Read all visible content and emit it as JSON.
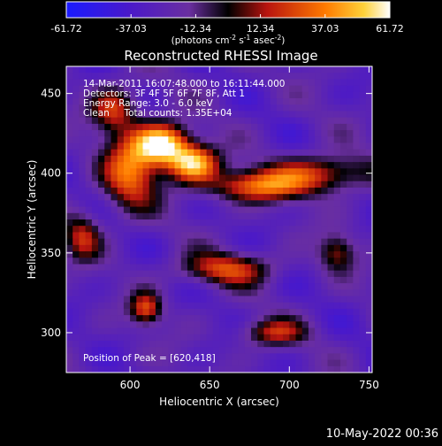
{
  "colorbar": {
    "tick_labels": [
      "-61.72",
      "-37.03",
      "-12.34",
      "12.34",
      "37.03",
      "61.72"
    ],
    "tick_values": [
      -61.72,
      -37.03,
      -12.34,
      12.34,
      37.03,
      61.72
    ],
    "range": [
      -61.72,
      61.72
    ],
    "units_prefix": "(photons cm",
    "units_exp1": "-2",
    "units_mid": " s",
    "units_exp2": "-1",
    "units_mid2": " asec",
    "units_exp3": "-2",
    "units_suffix": ")",
    "colormap": "rainbow-blue-to-white"
  },
  "chart_data": {
    "type": "heatmap",
    "title": "Reconstructed RHESSI Image",
    "xlabel": "Heliocentric X (arcsec)",
    "ylabel": "Heliocentric Y (arcsec)",
    "xlim": [
      560,
      752
    ],
    "ylim": [
      275,
      467
    ],
    "x_ticks": [
      600,
      650,
      700,
      750
    ],
    "y_ticks": [
      300,
      350,
      400,
      450
    ],
    "x_tick_labels": [
      "600",
      "650",
      "700",
      "750"
    ],
    "y_tick_labels": [
      "300",
      "350",
      "400",
      "450"
    ],
    "peak": [
      620,
      418
    ],
    "sources": [
      {
        "x": 620,
        "y": 418,
        "amp": 61.7,
        "sx": 12,
        "sy": 9
      },
      {
        "x": 640,
        "y": 406,
        "amp": 48,
        "sx": 11,
        "sy": 8
      },
      {
        "x": 600,
        "y": 400,
        "amp": 32,
        "sx": 12,
        "sy": 16
      },
      {
        "x": 680,
        "y": 392,
        "amp": 30,
        "sx": 22,
        "sy": 7
      },
      {
        "x": 720,
        "y": 400,
        "amp": 20,
        "sx": 22,
        "sy": 8
      },
      {
        "x": 590,
        "y": 440,
        "amp": 22,
        "sx": 10,
        "sy": 10
      },
      {
        "x": 660,
        "y": 340,
        "amp": 22,
        "sx": 20,
        "sy": 7
      },
      {
        "x": 610,
        "y": 315,
        "amp": 24,
        "sx": 7,
        "sy": 7
      },
      {
        "x": 570,
        "y": 360,
        "amp": 15,
        "sx": 8,
        "sy": 10
      },
      {
        "x": 690,
        "y": 300,
        "amp": 14,
        "sx": 14,
        "sy": 6
      },
      {
        "x": 730,
        "y": 350,
        "amp": 10,
        "sx": 8,
        "sy": 8
      }
    ]
  },
  "overlay": {
    "time_range": "14-Mar-2011 16:07:48.000 to 16:11:44.000",
    "detectors": "Detectors: 3F 4F 5F 6F 7F 8F, Att 1",
    "energy": "Energy Range: 3.0 - 6.0 keV",
    "clean": "Clean     Total counts: 1.35E+04",
    "peak_position": "Position of Peak = [620,418]"
  },
  "timestamp": "10-May-2022 00:36"
}
